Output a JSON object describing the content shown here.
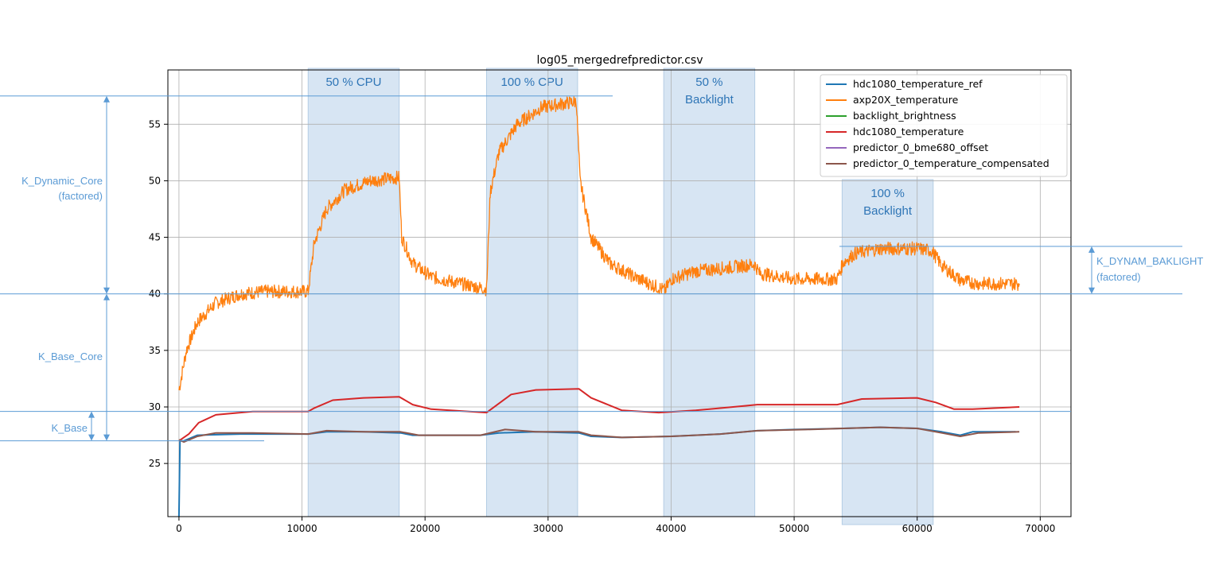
{
  "chart_data": {
    "type": "line",
    "title": "log05_mergedrefpredictor.csv",
    "xlim": [
      -900,
      72500
    ],
    "ylim": [
      20.3,
      59.8
    ],
    "xticks": [
      0,
      10000,
      20000,
      30000,
      40000,
      50000,
      60000,
      70000
    ],
    "yticks": [
      25,
      30,
      35,
      40,
      45,
      50,
      55
    ],
    "grid": true,
    "legend_position": "top-right",
    "series": [
      {
        "name": "hdc1080_temperature_ref",
        "color": "#1f77b4",
        "points": [
          [
            0,
            20.3
          ],
          [
            80,
            27.0
          ],
          [
            400,
            27.0
          ],
          [
            1500,
            27.5
          ],
          [
            5000,
            27.6
          ],
          [
            9000,
            27.6
          ],
          [
            10500,
            27.6
          ],
          [
            12000,
            27.8
          ],
          [
            15000,
            27.8
          ],
          [
            18000,
            27.7
          ],
          [
            19000,
            27.5
          ],
          [
            24500,
            27.5
          ],
          [
            26000,
            27.7
          ],
          [
            29000,
            27.8
          ],
          [
            32500,
            27.7
          ],
          [
            33500,
            27.4
          ],
          [
            36000,
            27.3
          ],
          [
            40000,
            27.4
          ],
          [
            44000,
            27.6
          ],
          [
            47000,
            27.9
          ],
          [
            50000,
            28.0
          ],
          [
            54000,
            28.1
          ],
          [
            57000,
            28.2
          ],
          [
            60000,
            28.1
          ],
          [
            62000,
            27.8
          ],
          [
            63500,
            27.5
          ],
          [
            64500,
            27.8
          ],
          [
            68000,
            27.8
          ]
        ]
      },
      {
        "name": "axp20X_temperature",
        "color": "#ff7f0e",
        "points": [
          [
            0,
            31.5
          ],
          [
            600,
            35.0
          ],
          [
            1500,
            37.5
          ],
          [
            3000,
            39.2
          ],
          [
            5000,
            40.0
          ],
          [
            7000,
            40.2
          ],
          [
            10500,
            40.2
          ],
          [
            11000,
            44.5
          ],
          [
            12000,
            47.5
          ],
          [
            13500,
            49.2
          ],
          [
            15500,
            50.0
          ],
          [
            17900,
            50.3
          ],
          [
            18100,
            45.0
          ],
          [
            19000,
            42.7
          ],
          [
            20500,
            41.5
          ],
          [
            22500,
            41.0
          ],
          [
            25000,
            40.4
          ],
          [
            25300,
            49.0
          ],
          [
            26000,
            52.5
          ],
          [
            27500,
            55.0
          ],
          [
            29500,
            56.5
          ],
          [
            32300,
            57.0
          ],
          [
            32600,
            50.0
          ],
          [
            33500,
            45.0
          ],
          [
            35000,
            42.7
          ],
          [
            37000,
            41.5
          ],
          [
            39500,
            40.3
          ],
          [
            40000,
            41.3
          ],
          [
            42000,
            42.0
          ],
          [
            44500,
            42.3
          ],
          [
            46800,
            42.6
          ],
          [
            47200,
            41.8
          ],
          [
            50000,
            41.3
          ],
          [
            53500,
            41.3
          ],
          [
            54000,
            42.8
          ],
          [
            55000,
            43.6
          ],
          [
            57000,
            44.0
          ],
          [
            60000,
            44.0
          ],
          [
            61200,
            43.8
          ],
          [
            62000,
            42.5
          ],
          [
            63500,
            41.2
          ],
          [
            65000,
            40.9
          ],
          [
            68300,
            40.9
          ]
        ]
      },
      {
        "name": "backlight_brightness",
        "color": "#2ca02c",
        "points": []
      },
      {
        "name": "hdc1080_temperature",
        "color": "#d62728",
        "points": [
          [
            0,
            27.0
          ],
          [
            800,
            27.6
          ],
          [
            1600,
            28.6
          ],
          [
            3000,
            29.3
          ],
          [
            6000,
            29.6
          ],
          [
            10500,
            29.6
          ],
          [
            11000,
            29.9
          ],
          [
            12500,
            30.6
          ],
          [
            15000,
            30.8
          ],
          [
            17900,
            30.9
          ],
          [
            19000,
            30.2
          ],
          [
            20500,
            29.8
          ],
          [
            25000,
            29.5
          ],
          [
            25500,
            29.9
          ],
          [
            27000,
            31.1
          ],
          [
            29000,
            31.5
          ],
          [
            32500,
            31.6
          ],
          [
            33500,
            30.8
          ],
          [
            36000,
            29.7
          ],
          [
            39000,
            29.5
          ],
          [
            42000,
            29.7
          ],
          [
            46000,
            30.1
          ],
          [
            47000,
            30.2
          ],
          [
            53500,
            30.2
          ],
          [
            55500,
            30.7
          ],
          [
            60000,
            30.8
          ],
          [
            61500,
            30.4
          ],
          [
            63000,
            29.8
          ],
          [
            64500,
            29.8
          ],
          [
            68300,
            30.0
          ]
        ]
      },
      {
        "name": "predictor_0_bme680_offset",
        "color": "#9467bd",
        "points": []
      },
      {
        "name": "predictor_0_temperature_compensated",
        "color": "#8c564b",
        "points": [
          [
            0,
            27.1
          ],
          [
            400,
            26.9
          ],
          [
            1500,
            27.4
          ],
          [
            3000,
            27.7
          ],
          [
            6000,
            27.7
          ],
          [
            10500,
            27.6
          ],
          [
            12000,
            27.9
          ],
          [
            15000,
            27.8
          ],
          [
            18000,
            27.8
          ],
          [
            19500,
            27.5
          ],
          [
            24500,
            27.5
          ],
          [
            26500,
            28.0
          ],
          [
            29000,
            27.8
          ],
          [
            32500,
            27.8
          ],
          [
            33500,
            27.5
          ],
          [
            36000,
            27.3
          ],
          [
            40000,
            27.4
          ],
          [
            44000,
            27.6
          ],
          [
            47000,
            27.9
          ],
          [
            51000,
            28.0
          ],
          [
            54000,
            28.1
          ],
          [
            57000,
            28.2
          ],
          [
            60000,
            28.1
          ],
          [
            62000,
            27.7
          ],
          [
            63500,
            27.4
          ],
          [
            65000,
            27.7
          ],
          [
            68300,
            27.8
          ]
        ]
      }
    ],
    "phases": [
      {
        "label_lines": [
          "50 % CPU"
        ],
        "x_start": 10500,
        "x_end": 17900
      },
      {
        "label_lines": [
          "100 % CPU"
        ],
        "x_start": 25000,
        "x_end": 32400
      },
      {
        "label_lines": [
          "50 %",
          "Backlight"
        ],
        "x_start": 39400,
        "x_end": 46800
      },
      {
        "label_lines": [
          "100 %",
          "Backlight"
        ],
        "x_start": 53900,
        "x_end": 61300
      }
    ],
    "annotations": [
      {
        "label_lines": [
          "K_Dynamic_Core",
          "(factored)"
        ],
        "y_from": 40,
        "y_to": 57.5
      },
      {
        "label_lines": [
          "K_Base_Core"
        ],
        "y_from": 27,
        "y_to": 40
      },
      {
        "label_lines": [
          "K_Base"
        ],
        "y_from": 27,
        "y_to": 29.6
      },
      {
        "label_lines": [
          "K_DYNAM_BAKLIGHT",
          "(factored)"
        ],
        "y_from": 40,
        "y_to": 44.2
      }
    ]
  }
}
